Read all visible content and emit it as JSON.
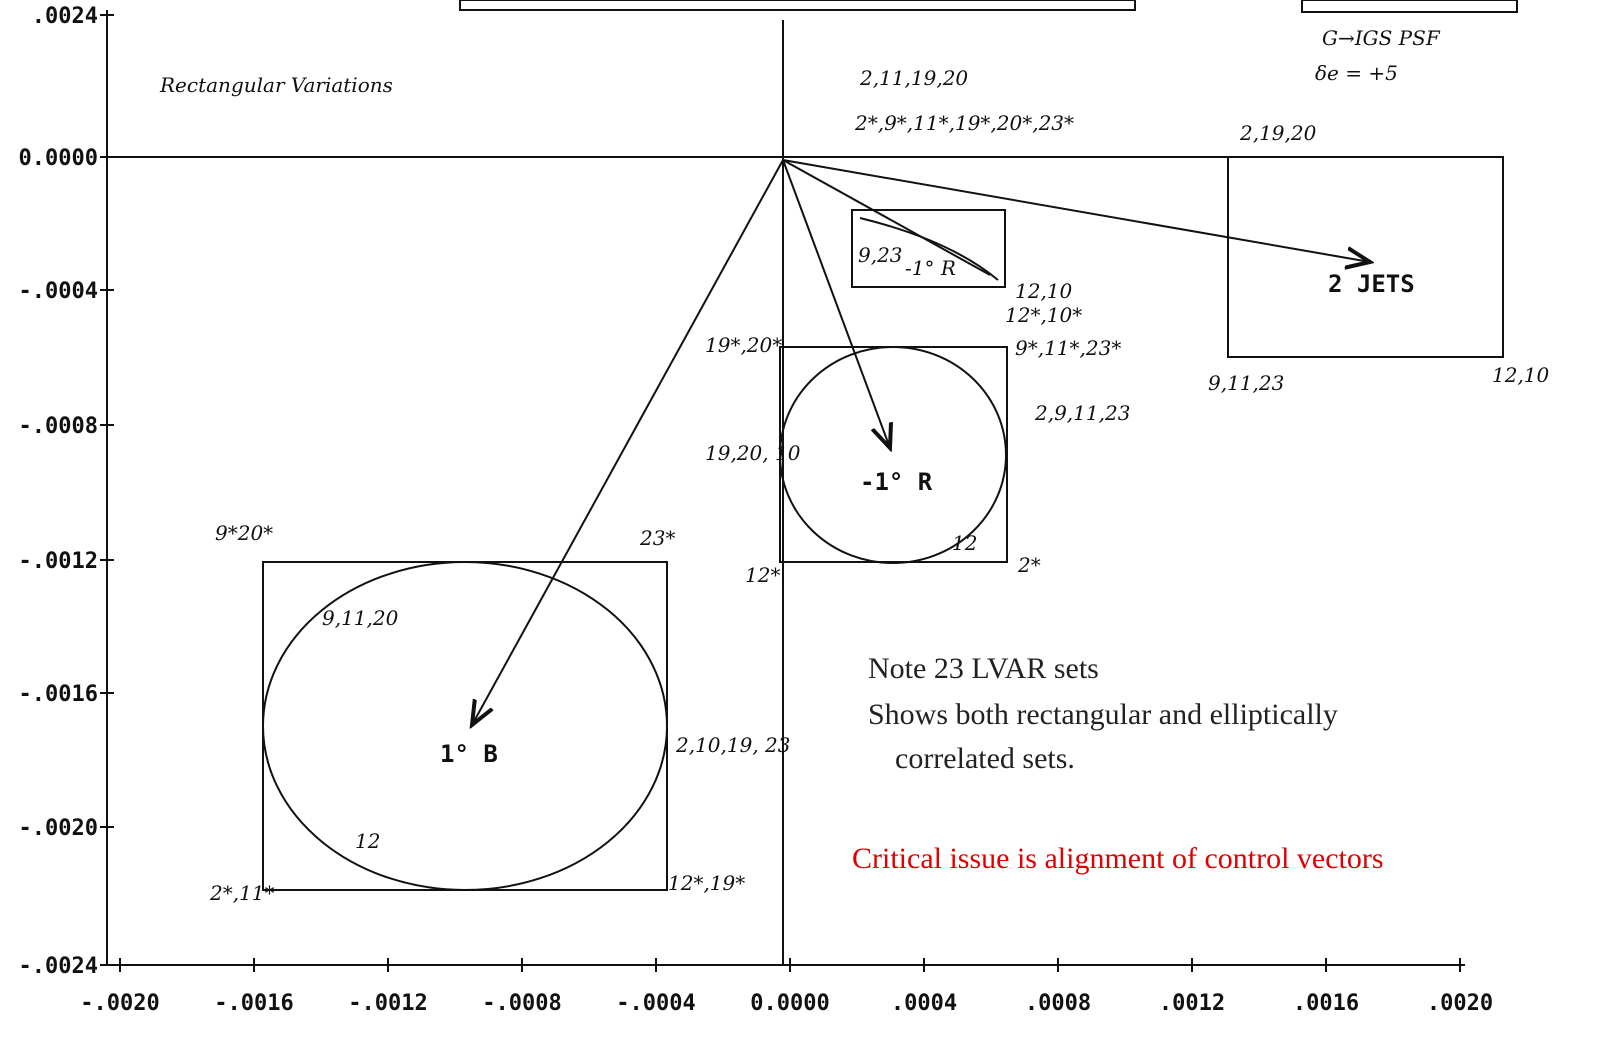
{
  "title": "Rectangular Variations",
  "legend": {
    "case": "G→IGS PSF",
    "param": "δe = +5"
  },
  "y_axis": {
    "ticks": [
      ".0024",
      "0.0000",
      "-.0004",
      "-.0008",
      "-.0012",
      "-.0016",
      "-.0020",
      "-.0024"
    ]
  },
  "x_axis": {
    "ticks": [
      "-.0020",
      "-.0016",
      "-.0012",
      "-.0008",
      "-.0004",
      "0.0000",
      ".0004",
      ".0008",
      ".0012",
      ".0016",
      ".0020"
    ]
  },
  "annotations": [
    "2,11,19,20",
    "2*,9*,11*,19*,20*,23*",
    "2,19,20",
    "9,23",
    "-1° R",
    "12,10",
    "12*,10*",
    "19*,20*",
    "9*,11*,23*",
    "2,9,11,23",
    "19,20, 10",
    "-1° R",
    "12",
    "2*",
    "12*",
    "9*20*",
    "23*",
    "9,11,20",
    "1° B",
    "2,10,19, 23",
    "12",
    "2*,11*",
    "12*,19*",
    "2 JETS",
    "9,11,23",
    "12,10"
  ],
  "note": {
    "lines": [
      "Note 23 LVAR sets",
      "Shows both rectangular and elliptically",
      "correlated sets."
    ],
    "critical": "Critical issue is alignment of control vectors"
  }
}
